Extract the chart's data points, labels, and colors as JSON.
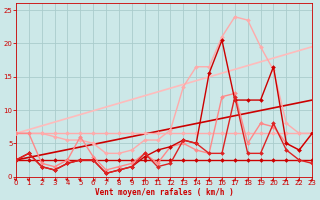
{
  "background_color": "#cce8e8",
  "grid_color": "#aacccc",
  "xlabel": "Vent moyen/en rafales ( km/h )",
  "xlabel_color": "#cc0000",
  "tick_color": "#cc0000",
  "xlim": [
    0,
    23
  ],
  "ylim": [
    0,
    26
  ],
  "yticks": [
    0,
    5,
    10,
    15,
    20,
    25
  ],
  "xticks": [
    0,
    1,
    2,
    3,
    4,
    5,
    6,
    7,
    8,
    9,
    10,
    11,
    12,
    13,
    14,
    15,
    16,
    17,
    18,
    19,
    20,
    21,
    22,
    23
  ],
  "series": [
    {
      "x": [
        0,
        1,
        2,
        3,
        4,
        5,
        6,
        7,
        8,
        9,
        10,
        11,
        12,
        13,
        14,
        15,
        16,
        17,
        18,
        19,
        20,
        21,
        22,
        23
      ],
      "y": [
        6.5,
        6.5,
        6.5,
        6.5,
        6.5,
        6.5,
        6.5,
        6.5,
        6.5,
        6.5,
        6.5,
        6.5,
        6.5,
        6.5,
        6.5,
        6.5,
        6.5,
        6.5,
        6.5,
        6.5,
        6.5,
        6.5,
        6.5,
        6.5
      ],
      "color": "#ffaaaa",
      "lw": 1.0,
      "marker": "D",
      "ms": 2.0,
      "zorder": 3
    },
    {
      "x": [
        0,
        1,
        2,
        3,
        4,
        5,
        6,
        7,
        8,
        9,
        10,
        11,
        12,
        13,
        14,
        15,
        16,
        17,
        18,
        19,
        20,
        21,
        22,
        23
      ],
      "y": [
        2.5,
        2.5,
        2.5,
        2.5,
        2.5,
        2.5,
        2.5,
        2.5,
        2.5,
        2.5,
        2.5,
        2.5,
        2.5,
        2.5,
        2.5,
        2.5,
        2.5,
        2.5,
        2.5,
        2.5,
        2.5,
        2.5,
        2.5,
        2.5
      ],
      "color": "#cc0000",
      "lw": 1.0,
      "marker": "D",
      "ms": 2.0,
      "zorder": 3
    },
    {
      "x": [
        0,
        1,
        2,
        3,
        4,
        5,
        6,
        7,
        8,
        9,
        10,
        11,
        12,
        13,
        14,
        15,
        16,
        17,
        18,
        19,
        20,
        21,
        22,
        23
      ],
      "y": [
        6.5,
        6.5,
        6.5,
        6.0,
        5.5,
        5.5,
        5.0,
        3.5,
        3.5,
        4.0,
        5.5,
        5.5,
        7.0,
        13.5,
        16.5,
        16.5,
        21.0,
        24.0,
        23.5,
        19.5,
        16.0,
        8.0,
        6.5,
        6.5
      ],
      "color": "#ffaaaa",
      "lw": 1.0,
      "marker": "D",
      "ms": 2.0,
      "zorder": 3
    },
    {
      "x": [
        0,
        1,
        2,
        3,
        4,
        5,
        6,
        7,
        8,
        9,
        10,
        11,
        12,
        13,
        14,
        15,
        16,
        17,
        18,
        19,
        20,
        21,
        22,
        23
      ],
      "y": [
        6.5,
        6.5,
        2.0,
        1.5,
        2.5,
        6.0,
        3.0,
        1.0,
        1.5,
        2.0,
        3.5,
        2.0,
        4.5,
        5.0,
        4.0,
        3.5,
        12.0,
        12.5,
        5.0,
        8.0,
        7.5,
        5.0,
        4.0,
        6.5
      ],
      "color": "#ff8888",
      "lw": 1.0,
      "marker": "D",
      "ms": 2.0,
      "zorder": 3
    },
    {
      "x": [
        0,
        1,
        2,
        3,
        4,
        5,
        6,
        7,
        8,
        9,
        10,
        11,
        12,
        13,
        14,
        15,
        16,
        17,
        18,
        19,
        20,
        21,
        22,
        23
      ],
      "y": [
        2.5,
        3.5,
        1.5,
        1.0,
        2.0,
        2.5,
        2.5,
        0.5,
        1.0,
        1.5,
        3.0,
        4.0,
        4.5,
        5.5,
        5.0,
        15.5,
        20.5,
        11.5,
        11.5,
        11.5,
        16.5,
        5.0,
        4.0,
        6.5
      ],
      "color": "#cc0000",
      "lw": 1.0,
      "marker": "D",
      "ms": 2.0,
      "zorder": 3
    },
    {
      "x": [
        0,
        1,
        2,
        3,
        4,
        5,
        6,
        7,
        8,
        9,
        10,
        11,
        12,
        13,
        14,
        15,
        16,
        17,
        18,
        19,
        20,
        21,
        22,
        23
      ],
      "y": [
        2.5,
        3.5,
        1.5,
        1.0,
        2.0,
        2.5,
        2.5,
        0.5,
        1.0,
        1.5,
        3.5,
        1.5,
        2.0,
        5.5,
        5.0,
        3.5,
        3.5,
        12.0,
        3.5,
        3.5,
        8.0,
        4.0,
        2.5,
        2.0
      ],
      "color": "#dd2222",
      "lw": 1.0,
      "marker": "D",
      "ms": 2.0,
      "zorder": 3
    },
    {
      "x": [
        0,
        23
      ],
      "y": [
        6.5,
        19.5
      ],
      "color": "#ffbbbb",
      "lw": 1.2,
      "marker": null,
      "ms": 0,
      "zorder": 2
    },
    {
      "x": [
        0,
        23
      ],
      "y": [
        2.5,
        11.5
      ],
      "color": "#cc0000",
      "lw": 1.2,
      "marker": null,
      "ms": 0,
      "zorder": 2
    }
  ],
  "wind_arrows": {
    "x": [
      0,
      1,
      2,
      3,
      4,
      5,
      6,
      7,
      8,
      9,
      10,
      11,
      12,
      13,
      14,
      15,
      16,
      17,
      18,
      19,
      20,
      21,
      22,
      23
    ],
    "angles": [
      225,
      225,
      270,
      270,
      225,
      225,
      270,
      270,
      315,
      315,
      315,
      315,
      315,
      315,
      315,
      315,
      315,
      315,
      315,
      315,
      315,
      315,
      315,
      315
    ]
  }
}
